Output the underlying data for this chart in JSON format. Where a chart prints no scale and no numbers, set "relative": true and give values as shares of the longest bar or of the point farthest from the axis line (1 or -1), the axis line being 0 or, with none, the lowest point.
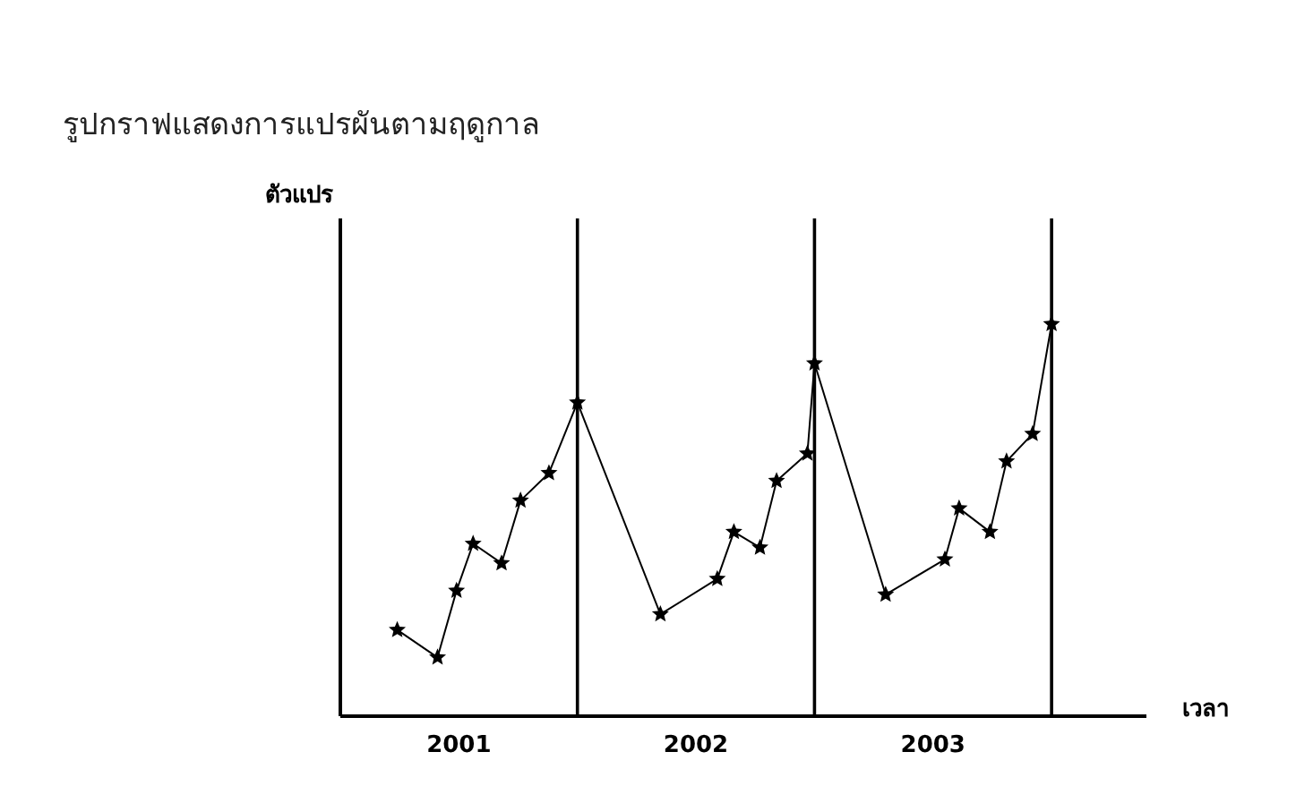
{
  "chart_data": {
    "type": "line",
    "title": "รูปกราฟแสดงการแปรผันตามฤดูกาล",
    "ylabel": "ตัวแปร",
    "xlabel": "เวลา",
    "relative": true,
    "marker": "star",
    "line_style": "solid",
    "grid": false,
    "tick_labels": "x",
    "xlim": [
      2000.5,
      2003.9
    ],
    "xticks": [
      2001,
      2002,
      2003
    ],
    "ref_lines": [
      {
        "axis": "x",
        "value": 2001.5,
        "color": "#000000"
      },
      {
        "axis": "x",
        "value": 2002.5,
        "color": "#000000"
      },
      {
        "axis": "x",
        "value": 2003.5,
        "color": "#000000"
      }
    ],
    "series": [
      {
        "color": "#000000",
        "x": [
          2000.74,
          2000.91,
          2000.99,
          2001.06,
          2001.18,
          2001.26,
          2001.38,
          2001.5,
          2001.85,
          2002.09,
          2002.16,
          2002.27,
          2002.34,
          2002.47,
          2002.5,
          2002.8,
          2003.05,
          2003.11,
          2003.24,
          2003.31,
          2003.42,
          2003.5
        ],
        "values": [
          0.22,
          0.15,
          0.32,
          0.44,
          0.39,
          0.55,
          0.62,
          0.8,
          0.26,
          0.35,
          0.47,
          0.43,
          0.6,
          0.67,
          0.9,
          0.31,
          0.4,
          0.53,
          0.47,
          0.65,
          0.72,
          1
        ]
      }
    ]
  }
}
